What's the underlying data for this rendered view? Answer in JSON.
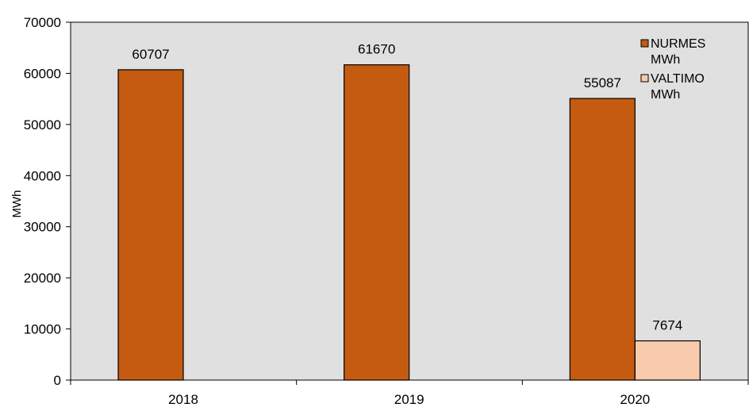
{
  "chart_data": {
    "type": "bar",
    "categories": [
      "2018",
      "2019",
      "2020"
    ],
    "series": [
      {
        "name": "NURMES MWh",
        "values": [
          60707,
          61670,
          55087
        ],
        "color": "#c55a11"
      },
      {
        "name": "VALTIMO MWh",
        "values": [
          null,
          null,
          7674
        ],
        "color": "#f8cbad"
      }
    ],
    "legend_lines": [
      [
        "NURMES",
        "MWh"
      ],
      [
        "VALTIMO",
        "MWh"
      ]
    ],
    "data_labels": [
      [
        "60707",
        "61670",
        "55087"
      ],
      [
        "",
        "",
        "7674"
      ]
    ],
    "y_ticks": [
      "0",
      "10000",
      "20000",
      "30000",
      "40000",
      "50000",
      "60000",
      "70000"
    ],
    "ylim": [
      0,
      70000
    ],
    "ylabel": "MWh",
    "xlabel": "",
    "title": "",
    "grid": false,
    "legend_position": "top-right",
    "plot_background": "#e0e0e0"
  }
}
